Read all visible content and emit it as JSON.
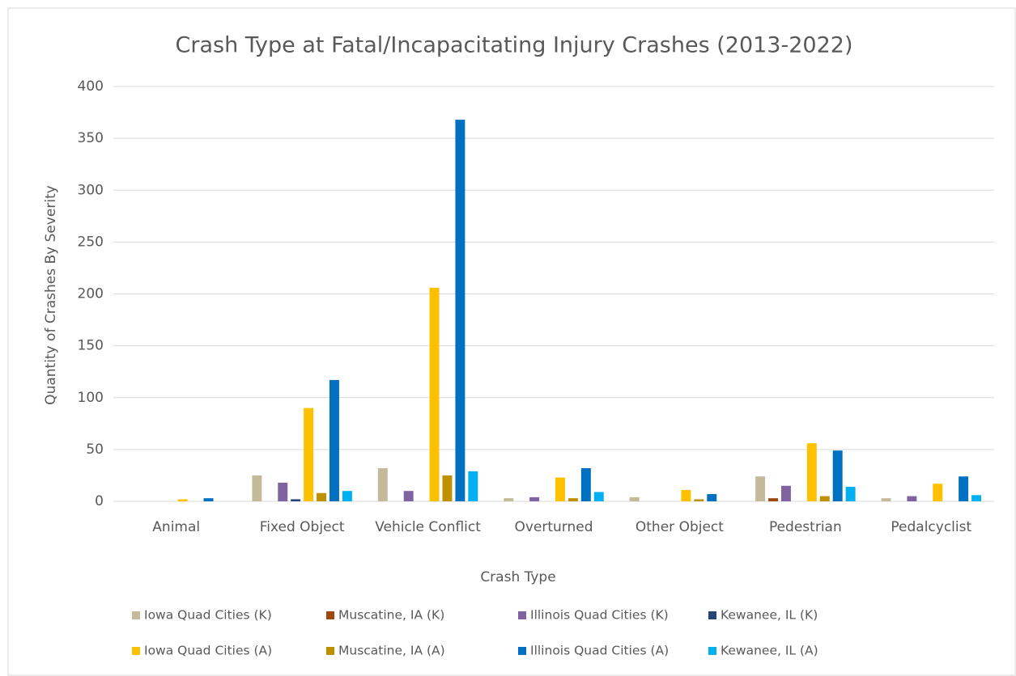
{
  "chart_data": {
    "type": "bar",
    "title": "Crash Type at Fatal/Incapacitating Injury Crashes (2013-2022)",
    "x_label": "Crash Type",
    "y_label": "Quantity of Crashes By Severity",
    "categories": [
      "Animal",
      "Fixed Object",
      "Vehicle Conflict",
      "Overturned",
      "Other Object",
      "Pedestrian",
      "Pedalcyclist"
    ],
    "series": [
      {
        "name": "Iowa Quad Cities  (K)",
        "color": "#c4b998",
        "values": [
          0,
          25,
          32,
          3,
          4,
          24,
          3
        ]
      },
      {
        "name": "Muscatine, IA  (K)",
        "color": "#9e480e",
        "values": [
          0,
          0,
          0,
          0,
          0,
          3,
          0
        ]
      },
      {
        "name": "Illinois Quad Cities (K)",
        "color": "#8064a2",
        "values": [
          0,
          18,
          10,
          4,
          0,
          15,
          5
        ]
      },
      {
        "name": "Kewanee, IL (K)",
        "color": "#264478",
        "values": [
          0,
          2,
          0,
          0,
          0,
          0,
          0
        ]
      },
      {
        "name": "Iowa Quad Cities  (A)",
        "color": "#ffc000",
        "values": [
          2,
          90,
          206,
          23,
          11,
          56,
          17
        ]
      },
      {
        "name": "Muscatine, IA  (A)",
        "color": "#bf9000",
        "values": [
          0,
          8,
          25,
          3,
          2,
          5,
          0
        ]
      },
      {
        "name": "Illinois Quad Cities (A)",
        "color": "#0070c0",
        "values": [
          3,
          117,
          368,
          32,
          7,
          49,
          24
        ]
      },
      {
        "name": "Kewanee, IL (A)",
        "color": "#00b0f0",
        "values": [
          0,
          10,
          29,
          9,
          0,
          14,
          6
        ]
      }
    ],
    "ylim": [
      0,
      400
    ],
    "yticks": [
      0,
      50,
      100,
      150,
      200,
      250,
      300,
      350,
      400
    ],
    "grid": true,
    "legend": "bottom"
  }
}
